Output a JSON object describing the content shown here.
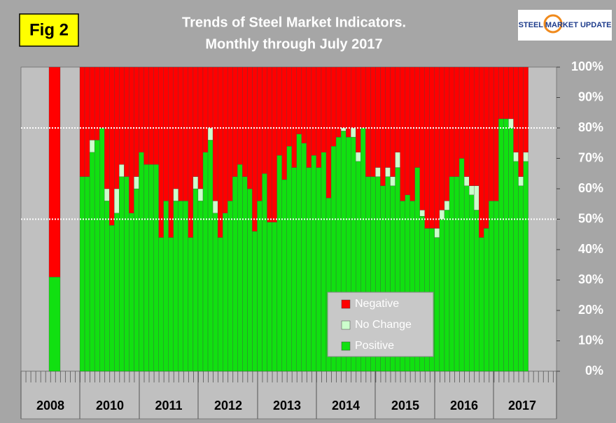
{
  "chart_data": {
    "type": "stacked_bar_100",
    "fig_label": "Fig 2",
    "title": "Trends of Steel Market Indicators.",
    "subtitle": "Monthly through  July 2017",
    "logo_text": "STEEL MARKET UPDATE",
    "year_labels": [
      "2008",
      "2010",
      "2011",
      "2012",
      "2013",
      "2014",
      "2015",
      "2016",
      "2017"
    ],
    "categories": [
      null,
      null,
      null,
      null,
      null,
      null,
      null,
      null,
      null,
      null,
      null,
      null,
      null,
      null,
      null,
      null,
      null,
      null,
      null,
      null,
      null,
      null,
      null,
      null,
      null,
      null,
      null,
      null,
      null,
      null,
      null,
      null,
      null,
      null,
      null,
      null,
      null,
      null,
      null,
      null,
      null,
      null,
      null,
      null,
      null,
      null,
      null,
      null,
      null,
      null,
      null,
      null,
      null,
      null,
      null,
      null,
      null,
      null,
      null,
      null,
      null,
      null,
      null,
      null,
      null,
      null,
      null,
      null,
      null,
      null,
      null,
      null,
      null,
      null,
      null,
      null,
      null,
      null,
      null,
      null,
      null,
      null,
      null,
      null,
      null,
      null,
      null,
      null,
      null,
      null,
      null,
      null
    ],
    "series": [
      {
        "name": "Positive",
        "color": "#11e011",
        "values": [
          31,
          64,
          64,
          72,
          76,
          80,
          56,
          48,
          52,
          64,
          64,
          52,
          60,
          72,
          68,
          68,
          68,
          44,
          56,
          44,
          56,
          56,
          56,
          44,
          60,
          56,
          72,
          76,
          52,
          44,
          52,
          56,
          64,
          68,
          64,
          60,
          46,
          56,
          65,
          49,
          49,
          71,
          63,
          74,
          67,
          78,
          75,
          67,
          71,
          67,
          72,
          57,
          74,
          77,
          79,
          77,
          77,
          69,
          80,
          64,
          64,
          64,
          61,
          64,
          61,
          67,
          56,
          58,
          56,
          67,
          51,
          47,
          47,
          44,
          50,
          53,
          64,
          64,
          70,
          61,
          58,
          53,
          44,
          47,
          56,
          56,
          83,
          83,
          80,
          69,
          61,
          69
        ]
      },
      {
        "name": "No Change",
        "color": "#ccffcc",
        "values": [
          0,
          0,
          0,
          4,
          0,
          0,
          4,
          0,
          8,
          4,
          0,
          0,
          4,
          0,
          0,
          0,
          0,
          0,
          0,
          0,
          4,
          0,
          0,
          0,
          4,
          4,
          0,
          4,
          4,
          0,
          0,
          0,
          0,
          0,
          0,
          0,
          0,
          0,
          0,
          0,
          0,
          0,
          0,
          0,
          0,
          0,
          0,
          0,
          0,
          0,
          0,
          0,
          0,
          0,
          1,
          0,
          3,
          3,
          0,
          0,
          0,
          3,
          0,
          3,
          3,
          5,
          0,
          0,
          0,
          0,
          2,
          0,
          0,
          3,
          3,
          3,
          0,
          0,
          0,
          3,
          3,
          8,
          0,
          0,
          0,
          0,
          0,
          0,
          3,
          3,
          3,
          3
        ]
      },
      {
        "name": "Negative",
        "color": "#ff0000",
        "values": [
          69,
          36,
          36,
          24,
          24,
          20,
          40,
          52,
          40,
          32,
          36,
          48,
          36,
          28,
          32,
          32,
          32,
          56,
          44,
          56,
          40,
          44,
          44,
          56,
          36,
          40,
          28,
          20,
          44,
          56,
          48,
          44,
          36,
          32,
          36,
          40,
          54,
          44,
          35,
          51,
          51,
          29,
          37,
          26,
          33,
          22,
          25,
          33,
          29,
          33,
          28,
          43,
          26,
          23,
          20,
          23,
          20,
          28,
          20,
          36,
          36,
          33,
          39,
          33,
          36,
          28,
          44,
          42,
          44,
          33,
          47,
          53,
          53,
          53,
          47,
          44,
          36,
          36,
          30,
          36,
          39,
          39,
          56,
          53,
          44,
          44,
          17,
          17,
          17,
          28,
          36,
          28
        ]
      }
    ],
    "ylim": [
      0,
      100
    ],
    "yticks": [
      {
        "value": 0,
        "label": "0%"
      },
      {
        "value": 10,
        "label": "10%"
      },
      {
        "value": 20,
        "label": "20%"
      },
      {
        "value": 30,
        "label": "30%"
      },
      {
        "value": 40,
        "label": "40%"
      },
      {
        "value": 50,
        "label": "50%"
      },
      {
        "value": 60,
        "label": "60%"
      },
      {
        "value": 70,
        "label": "70%"
      },
      {
        "value": 80,
        "label": "80%"
      },
      {
        "value": 90,
        "label": "90%"
      },
      {
        "value": 100,
        "label": "100%"
      }
    ],
    "reference_lines": [
      50,
      80
    ],
    "legend": "lower-right"
  }
}
